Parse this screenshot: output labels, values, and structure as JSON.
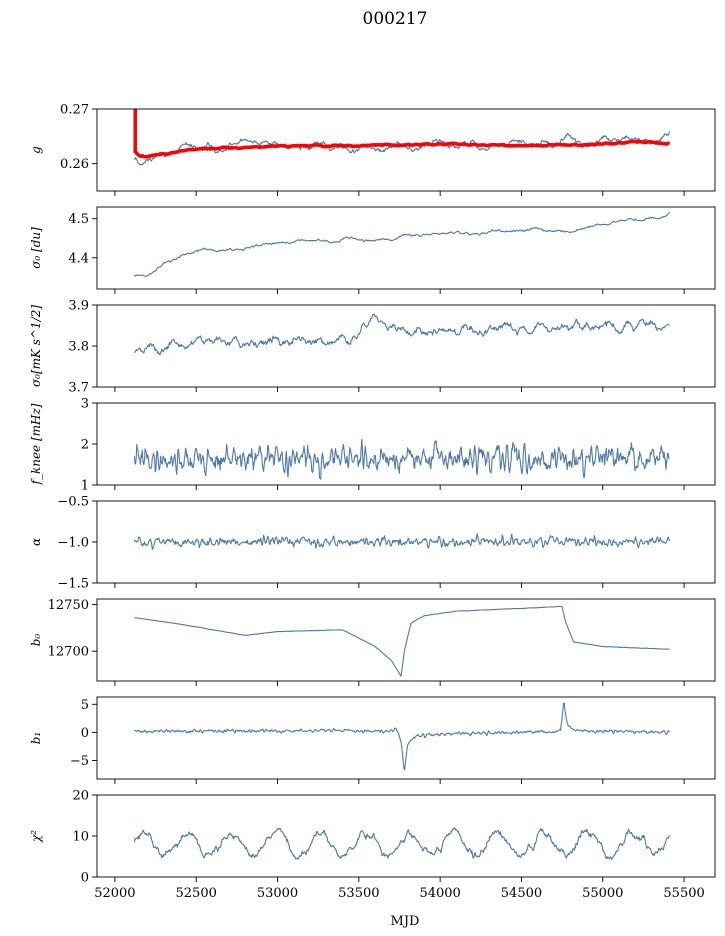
{
  "figure": {
    "title": "000217",
    "xlabel": "MJD",
    "line_color": "#4e79a7",
    "fit_color": "#ff0000"
  },
  "chart_data": {
    "type": "line",
    "x_range": [
      51890,
      55690
    ],
    "x_ticks": [
      52000,
      52500,
      53000,
      53500,
      54000,
      54500,
      55000,
      55500
    ],
    "x_tick_labels": [
      "52000",
      "52500",
      "53000",
      "53500",
      "54000",
      "54500",
      "55000",
      "55500"
    ],
    "x_data_range": [
      52120,
      55410
    ],
    "panels": [
      {
        "id": "g",
        "ylabel": "g",
        "ylim": [
          0.255,
          0.27
        ],
        "yticks": [
          0.26,
          0.27
        ],
        "ytick_labels": [
          "0.26",
          "0.27"
        ],
        "series": [
          {
            "name": "",
            "color": "#4e79a7",
            "base_x": [
              52120,
              52150,
              52200,
              52300,
              52500,
              53000,
              53300,
              53600,
              53700,
              54000,
              54500,
              55000,
              55410
            ],
            "base_y": [
              0.262,
              0.2608,
              0.2612,
              0.262,
              0.2625,
              0.2632,
              0.2635,
              0.2628,
              0.263,
              0.2633,
              0.2632,
              0.264,
              0.264
            ],
            "noise": 0.0009,
            "smooth": 12,
            "seed": 11
          },
          {
            "name": "",
            "color": "#ff0000",
            "base_x": [
              52120,
              52150,
              52200,
              52300,
              52500,
              53000,
              53500,
              54000,
              54500,
              55000,
              55200,
              55410
            ],
            "base_y": [
              0.2625,
              0.2614,
              0.2613,
              0.2618,
              0.2627,
              0.2632,
              0.2633,
              0.2636,
              0.2633,
              0.2636,
              0.264,
              0.2637
            ],
            "noise": 0.00012,
            "smooth": 4,
            "seed": 12,
            "width": 3.5,
            "spike": {
              "x": 52125,
              "y_top": 0.27,
              "y_bottom": 0.262
            }
          }
        ]
      },
      {
        "id": "sigma0-du",
        "ylabel": "σ₀ [du]",
        "ylim": [
          4.32,
          4.53
        ],
        "yticks": [
          4.4,
          4.5
        ],
        "ytick_labels": [
          "4.4",
          "4.5"
        ],
        "series": [
          {
            "name": "",
            "color": "#4e79a7",
            "base_x": [
              52120,
              52200,
              52300,
              52500,
              52900,
              53200,
              53600,
              54000,
              54400,
              54800,
              55100,
              55300,
              55410
            ],
            "base_y": [
              4.36,
              4.355,
              4.39,
              4.415,
              4.43,
              4.445,
              4.445,
              4.46,
              4.47,
              4.47,
              4.49,
              4.5,
              4.51
            ],
            "noise": 0.005,
            "smooth": 10,
            "seed": 21
          }
        ]
      },
      {
        "id": "sigma0-mk",
        "ylabel": "σ₀[mK s^1/2]",
        "ylim": [
          3.7,
          3.9
        ],
        "yticks": [
          3.7,
          3.8,
          3.9
        ],
        "ytick_labels": [
          "3.7",
          "3.8",
          "3.9"
        ],
        "series": [
          {
            "name": "",
            "color": "#4e79a7",
            "base_x": [
              52120,
              52400,
              52800,
              53200,
              53500,
              53600,
              53800,
              54200,
              54800,
              55410
            ],
            "base_y": [
              3.785,
              3.805,
              3.815,
              3.81,
              3.83,
              3.86,
              3.835,
              3.84,
              3.845,
              3.85
            ],
            "noise": 0.012,
            "smooth": 5,
            "seed": 31
          }
        ]
      },
      {
        "id": "fknee",
        "ylabel": "f_knee [mHz]",
        "ylim": [
          1,
          3
        ],
        "yticks": [
          1,
          2,
          3
        ],
        "ytick_labels": [
          "1",
          "2",
          "3"
        ],
        "series": [
          {
            "name": "",
            "color": "#4e79a7",
            "base_x": [
              52120,
              55410
            ],
            "base_y": [
              1.62,
              1.65
            ],
            "noise": 0.26,
            "smooth": 1,
            "seed": 41
          }
        ]
      },
      {
        "id": "alpha",
        "ylabel": "α",
        "ylim": [
          -1.5,
          -0.5
        ],
        "yticks": [
          -1.5,
          -1.0,
          -0.5
        ],
        "ytick_labels": [
          "−1.5",
          "−1.0",
          "−0.5"
        ],
        "series": [
          {
            "name": "",
            "color": "#4e79a7",
            "base_x": [
              52120,
              55410
            ],
            "base_y": [
              -1.0,
              -1.0
            ],
            "noise": 0.05,
            "smooth": 1,
            "seed": 51
          }
        ]
      },
      {
        "id": "b0",
        "ylabel": "b₀",
        "ylim": [
          12668,
          12756
        ],
        "yticks": [
          12700,
          12750
        ],
        "ytick_labels": [
          "12700",
          "12750"
        ],
        "series": [
          {
            "name": "",
            "color": "#4e79a7",
            "base_x": [
              52120,
              52400,
              52800,
              53000,
              53400,
              53600,
              53700,
              53760,
              53780,
              53820,
              53900,
              54100,
              54500,
              54750,
              54770,
              54820,
              55000,
              55410
            ],
            "base_y": [
              12736,
              12729,
              12717,
              12721,
              12723,
              12705,
              12690,
              12673,
              12700,
              12730,
              12738,
              12743,
              12746,
              12748,
              12732,
              12710,
              12705,
              12702
            ],
            "noise": 0.15,
            "smooth": 3,
            "seed": 61
          }
        ]
      },
      {
        "id": "b1",
        "ylabel": "b₁",
        "ylim": [
          -8.3,
          6.3
        ],
        "yticks": [
          -5,
          0,
          5
        ],
        "ytick_labels": [
          "−5",
          "0",
          "5"
        ],
        "series": [
          {
            "name": "",
            "color": "#4e79a7",
            "base_x": [
              52120,
              53700,
              53730,
              53760,
              53780,
              53800,
              53850,
              54740,
              54760,
              54780,
              54820,
              55410
            ],
            "base_y": [
              0.2,
              0.3,
              0.8,
              -1.5,
              -7.0,
              -2.0,
              -0.5,
              0.2,
              5.5,
              1.5,
              0.3,
              0.0
            ],
            "noise": 0.25,
            "smooth": 1,
            "seed": 71
          }
        ]
      },
      {
        "id": "chi2",
        "ylabel": "χ²",
        "ylim": [
          0,
          20
        ],
        "yticks": [
          0,
          10,
          20
        ],
        "ytick_labels": [
          "0",
          "10",
          "20"
        ],
        "series": [
          {
            "name": "",
            "color": "#4e79a7",
            "base_x": [
              52120,
              55410
            ],
            "base_y": [
              8.0,
              8.0
            ],
            "noise": 1.0,
            "smooth": 3,
            "seed": 81,
            "oscillation": {
              "amplitude": 2.7,
              "period": 274,
              "phase": 52100
            }
          }
        ]
      }
    ]
  }
}
